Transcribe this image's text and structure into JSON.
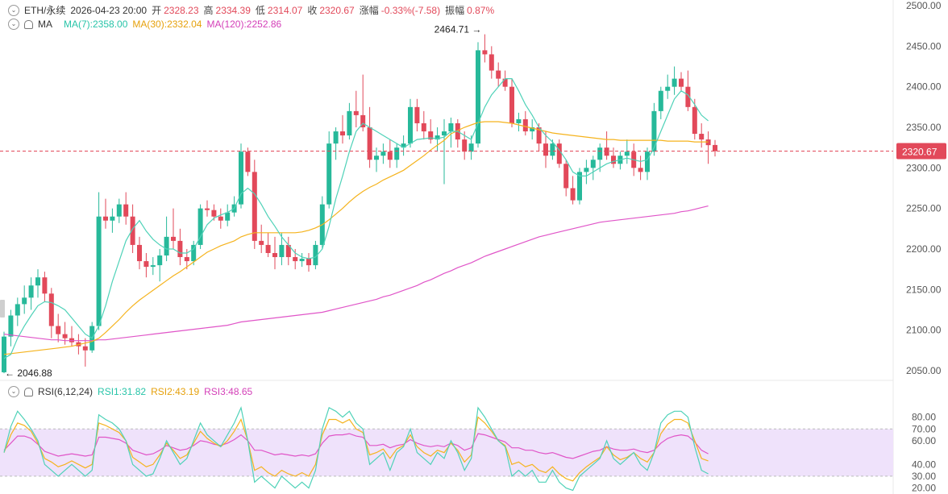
{
  "header": {
    "symbol": "ETH/永续",
    "datetime": "2026-04-23 20:00",
    "open_label": "开",
    "open_value": "2328.23",
    "high_label": "高",
    "high_value": "2334.39",
    "low_label": "低",
    "low_value": "2314.07",
    "close_label": "收",
    "close_value": "2320.67",
    "change_label": "涨幅",
    "change_value": "-0.33%(-7.58)",
    "amplitude_label": "振幅",
    "amplitude_value": "0.87%"
  },
  "ma_legend": {
    "label": "MA",
    "ma7": "MA(7):2358.00",
    "ma30": "MA(30):2332.04",
    "ma120": "MA(120):2252.86"
  },
  "rsi_legend": {
    "label": "RSI(6,12,24)",
    "rsi1": "RSI1:31.82",
    "rsi2": "RSI2:43.19",
    "rsi3": "RSI3:48.65"
  },
  "colors": {
    "up": "#27b99a",
    "down": "#e2495a",
    "ma7": "#4fd2b8",
    "ma30": "#f5b31d",
    "ma120": "#e055c8",
    "rsi1": "#4fd2b8",
    "rsi2": "#f5b31d",
    "rsi3": "#e055c8",
    "rsi_band": "#efe2fb"
  },
  "chart_data": [
    {
      "type": "candlestick",
      "symbol": "ETH/永续",
      "y_ticks": [
        "2500.00",
        "2450.00",
        "2400.00",
        "2350.00",
        "2300.00",
        "2250.00",
        "2200.00",
        "2150.00",
        "2100.00",
        "2050.00"
      ],
      "ylim": [
        2040,
        2505
      ],
      "last_price": "2320.67",
      "high_marker": "2464.71",
      "low_marker": "2046.88",
      "candles": [
        [
          2048,
          2098,
          2046.88,
          2092
        ],
        [
          2092,
          2125,
          2080,
          2118
        ],
        [
          2118,
          2140,
          2105,
          2132
        ],
        [
          2132,
          2155,
          2120,
          2140
        ],
        [
          2140,
          2165,
          2125,
          2155
        ],
        [
          2155,
          2175,
          2140,
          2165
        ],
        [
          2165,
          2172,
          2135,
          2145
        ],
        [
          2145,
          2152,
          2090,
          2105
        ],
        [
          2105,
          2120,
          2085,
          2095
        ],
        [
          2095,
          2110,
          2082,
          2090
        ],
        [
          2090,
          2105,
          2080,
          2085
        ],
        [
          2085,
          2095,
          2070,
          2080
        ],
        [
          2080,
          2090,
          2055,
          2075
        ],
        [
          2075,
          2110,
          2072,
          2105
        ],
        [
          2105,
          2270,
          2100,
          2240
        ],
        [
          2240,
          2262,
          2225,
          2235
        ],
        [
          2235,
          2250,
          2220,
          2240
        ],
        [
          2240,
          2262,
          2232,
          2255
        ],
        [
          2255,
          2270,
          2230,
          2240
        ],
        [
          2240,
          2255,
          2195,
          2205
        ],
        [
          2205,
          2215,
          2175,
          2185
        ],
        [
          2185,
          2195,
          2165,
          2178
        ],
        [
          2178,
          2190,
          2168,
          2180
        ],
        [
          2180,
          2200,
          2160,
          2192
        ],
        [
          2192,
          2240,
          2185,
          2215
        ],
        [
          2215,
          2250,
          2200,
          2210
        ],
        [
          2210,
          2225,
          2180,
          2190
        ],
        [
          2190,
          2200,
          2175,
          2185
        ],
        [
          2185,
          2210,
          2180,
          2205
        ],
        [
          2205,
          2255,
          2200,
          2250
        ],
        [
          2250,
          2260,
          2240,
          2248
        ],
        [
          2248,
          2255,
          2235,
          2240
        ],
        [
          2240,
          2250,
          2225,
          2235
        ],
        [
          2235,
          2255,
          2228,
          2245
        ],
        [
          2245,
          2265,
          2240,
          2255
        ],
        [
          2255,
          2330,
          2250,
          2320
        ],
        [
          2320,
          2325,
          2290,
          2295
        ],
        [
          2295,
          2310,
          2200,
          2210
        ],
        [
          2210,
          2230,
          2195,
          2205
        ],
        [
          2205,
          2220,
          2190,
          2195
        ],
        [
          2195,
          2215,
          2175,
          2190
        ],
        [
          2190,
          2220,
          2180,
          2205
        ],
        [
          2205,
          2215,
          2180,
          2190
        ],
        [
          2190,
          2200,
          2175,
          2185
        ],
        [
          2185,
          2195,
          2178,
          2188
        ],
        [
          2188,
          2195,
          2172,
          2180
        ],
        [
          2180,
          2210,
          2175,
          2205
        ],
        [
          2205,
          2265,
          2200,
          2255
        ],
        [
          2255,
          2345,
          2250,
          2330
        ],
        [
          2330,
          2350,
          2310,
          2345
        ],
        [
          2345,
          2365,
          2330,
          2340
        ],
        [
          2340,
          2380,
          2335,
          2370
        ],
        [
          2370,
          2395,
          2350,
          2365
        ],
        [
          2365,
          2415,
          2345,
          2350
        ],
        [
          2350,
          2375,
          2300,
          2310
        ],
        [
          2310,
          2325,
          2295,
          2315
        ],
        [
          2315,
          2330,
          2305,
          2320
        ],
        [
          2320,
          2335,
          2300,
          2310
        ],
        [
          2310,
          2330,
          2300,
          2325
        ],
        [
          2325,
          2340,
          2315,
          2330
        ],
        [
          2330,
          2385,
          2325,
          2375
        ],
        [
          2375,
          2385,
          2345,
          2355
        ],
        [
          2355,
          2370,
          2335,
          2345
        ],
        [
          2345,
          2360,
          2330,
          2335
        ],
        [
          2335,
          2350,
          2320,
          2340
        ],
        [
          2340,
          2360,
          2280,
          2345
        ],
        [
          2345,
          2362,
          2325,
          2355
        ],
        [
          2355,
          2360,
          2325,
          2335
        ],
        [
          2335,
          2345,
          2310,
          2320
        ],
        [
          2320,
          2340,
          2310,
          2330
        ],
        [
          2330,
          2455,
          2325,
          2445
        ],
        [
          2445,
          2464.71,
          2430,
          2440
        ],
        [
          2440,
          2450,
          2410,
          2420
        ],
        [
          2420,
          2430,
          2400,
          2410
        ],
        [
          2410,
          2420,
          2395,
          2400
        ],
        [
          2400,
          2410,
          2350,
          2355
        ],
        [
          2355,
          2368,
          2345,
          2360
        ],
        [
          2360,
          2370,
          2340,
          2345
        ],
        [
          2345,
          2360,
          2335,
          2350
        ],
        [
          2350,
          2355,
          2320,
          2330
        ],
        [
          2330,
          2345,
          2300,
          2315
        ],
        [
          2315,
          2335,
          2310,
          2330
        ],
        [
          2330,
          2335,
          2300,
          2305
        ],
        [
          2305,
          2310,
          2265,
          2275
        ],
        [
          2275,
          2290,
          2255,
          2260
        ],
        [
          2260,
          2300,
          2255,
          2295
        ],
        [
          2295,
          2310,
          2280,
          2300
        ],
        [
          2300,
          2315,
          2285,
          2310
        ],
        [
          2310,
          2330,
          2295,
          2325
        ],
        [
          2325,
          2345,
          2310,
          2315
        ],
        [
          2315,
          2325,
          2300,
          2305
        ],
        [
          2305,
          2320,
          2298,
          2315
        ],
        [
          2315,
          2335,
          2305,
          2320
        ],
        [
          2320,
          2330,
          2290,
          2300
        ],
        [
          2300,
          2315,
          2285,
          2295
        ],
        [
          2295,
          2325,
          2285,
          2320
        ],
        [
          2320,
          2380,
          2315,
          2370
        ],
        [
          2370,
          2400,
          2360,
          2395
        ],
        [
          2395,
          2415,
          2385,
          2400
        ],
        [
          2400,
          2425,
          2390,
          2410
        ],
        [
          2410,
          2418,
          2395,
          2400
        ],
        [
          2400,
          2420,
          2370,
          2375
        ],
        [
          2375,
          2385,
          2335,
          2342
        ],
        [
          2342,
          2355,
          2325,
          2335
        ],
        [
          2335,
          2345,
          2305,
          2328
        ],
        [
          2328.23,
          2334.39,
          2314.07,
          2320.67
        ]
      ],
      "ma7": [
        2065,
        2070,
        2090,
        2105,
        2118,
        2130,
        2135,
        2134,
        2130,
        2125,
        2115,
        2105,
        2095,
        2090,
        2105,
        2130,
        2160,
        2185,
        2210,
        2225,
        2235,
        2222,
        2212,
        2205,
        2200,
        2200,
        2195,
        2195,
        2200,
        2215,
        2230,
        2238,
        2242,
        2245,
        2250,
        2268,
        2275,
        2268,
        2255,
        2240,
        2228,
        2215,
        2205,
        2195,
        2190,
        2188,
        2190,
        2200,
        2228,
        2262,
        2290,
        2320,
        2345,
        2355,
        2350,
        2345,
        2340,
        2335,
        2330,
        2325,
        2330,
        2335,
        2336,
        2337,
        2336,
        2338,
        2345,
        2345,
        2340,
        2335,
        2355,
        2375,
        2390,
        2400,
        2410,
        2410,
        2395,
        2378,
        2365,
        2350,
        2340,
        2332,
        2322,
        2310,
        2295,
        2290,
        2290,
        2295,
        2300,
        2305,
        2308,
        2310,
        2312,
        2310,
        2308,
        2310,
        2325,
        2345,
        2365,
        2385,
        2395,
        2390,
        2378,
        2365,
        2358
      ],
      "ma30": [
        2070,
        2071,
        2072,
        2073,
        2074,
        2075,
        2076,
        2077,
        2078,
        2079,
        2080,
        2082,
        2084,
        2086,
        2090,
        2097,
        2105,
        2113,
        2122,
        2130,
        2137,
        2143,
        2149,
        2155,
        2161,
        2167,
        2172,
        2178,
        2184,
        2190,
        2196,
        2200,
        2204,
        2207,
        2210,
        2215,
        2218,
        2220,
        2220,
        2220,
        2220,
        2220,
        2220,
        2220,
        2221,
        2223,
        2226,
        2230,
        2236,
        2243,
        2250,
        2258,
        2265,
        2271,
        2276,
        2280,
        2285,
        2289,
        2293,
        2297,
        2303,
        2309,
        2315,
        2322,
        2328,
        2334,
        2342,
        2346,
        2350,
        2353,
        2356,
        2357,
        2357,
        2357,
        2356,
        2355,
        2353,
        2351,
        2349,
        2347,
        2345,
        2343,
        2342,
        2341,
        2340,
        2339,
        2338,
        2337,
        2336,
        2335,
        2335,
        2334,
        2334,
        2334,
        2334,
        2334,
        2334,
        2334,
        2333,
        2333,
        2333,
        2333,
        2332,
        2332,
        2332
      ],
      "ma120": [
        2095,
        2094,
        2093,
        2092,
        2091,
        2090,
        2089,
        2088,
        2088,
        2087,
        2087,
        2087,
        2087,
        2087,
        2088,
        2088,
        2089,
        2090,
        2091,
        2092,
        2093,
        2094,
        2095,
        2096,
        2097,
        2098,
        2099,
        2100,
        2101,
        2102,
        2103,
        2104,
        2105,
        2106,
        2108,
        2110,
        2111,
        2112,
        2113,
        2114,
        2115,
        2116,
        2117,
        2118,
        2119,
        2120,
        2121,
        2122,
        2124,
        2126,
        2128,
        2130,
        2132,
        2134,
        2136,
        2138,
        2141,
        2143,
        2146,
        2149,
        2152,
        2155,
        2159,
        2162,
        2166,
        2170,
        2173,
        2177,
        2180,
        2183,
        2187,
        2191,
        2194,
        2197,
        2200,
        2203,
        2206,
        2209,
        2212,
        2215,
        2217,
        2219,
        2221,
        2223,
        2225,
        2227,
        2229,
        2231,
        2233,
        2234,
        2235,
        2236,
        2237,
        2238,
        2239,
        2240,
        2241,
        2242,
        2243,
        2244,
        2246,
        2247,
        2249,
        2251,
        2253
      ]
    },
    {
      "type": "line",
      "name": "RSI(6,12,24)",
      "y_ticks": [
        "80.00",
        "70.00",
        "60.00",
        "40.00",
        "30.00",
        "20.00"
      ],
      "ylim": [
        17,
        92
      ],
      "band": [
        30,
        70
      ],
      "rsi1": [
        50,
        72,
        85,
        78,
        70,
        60,
        40,
        35,
        30,
        35,
        40,
        35,
        30,
        35,
        82,
        78,
        75,
        70,
        60,
        40,
        35,
        30,
        32,
        45,
        60,
        50,
        40,
        45,
        60,
        75,
        65,
        60,
        55,
        65,
        75,
        88,
        60,
        25,
        30,
        25,
        20,
        30,
        25,
        20,
        25,
        20,
        35,
        70,
        88,
        85,
        80,
        85,
        75,
        70,
        40,
        45,
        50,
        35,
        50,
        55,
        70,
        50,
        45,
        40,
        50,
        45,
        60,
        50,
        35,
        45,
        88,
        80,
        70,
        60,
        55,
        30,
        35,
        30,
        35,
        25,
        25,
        35,
        25,
        20,
        18,
        30,
        35,
        40,
        45,
        60,
        45,
        40,
        45,
        50,
        40,
        35,
        50,
        75,
        82,
        85,
        85,
        80,
        55,
        35,
        32
      ],
      "rsi2": [
        50,
        65,
        75,
        73,
        68,
        58,
        45,
        42,
        38,
        40,
        43,
        40,
        37,
        40,
        75,
        73,
        70,
        67,
        60,
        46,
        42,
        38,
        40,
        48,
        58,
        52,
        45,
        48,
        58,
        68,
        62,
        58,
        55,
        60,
        68,
        78,
        60,
        35,
        38,
        33,
        30,
        35,
        32,
        30,
        33,
        30,
        40,
        65,
        78,
        78,
        75,
        78,
        70,
        67,
        48,
        50,
        53,
        45,
        53,
        56,
        65,
        55,
        50,
        47,
        52,
        50,
        58,
        52,
        42,
        48,
        80,
        75,
        68,
        60,
        56,
        40,
        42,
        38,
        40,
        35,
        33,
        38,
        32,
        28,
        26,
        33,
        38,
        42,
        46,
        55,
        48,
        44,
        46,
        50,
        45,
        42,
        50,
        66,
        74,
        78,
        78,
        75,
        60,
        45,
        43
      ],
      "rsi3": [
        52,
        58,
        64,
        64,
        62,
        57,
        51,
        49,
        47,
        48,
        49,
        48,
        47,
        48,
        63,
        63,
        62,
        61,
        58,
        52,
        50,
        48,
        49,
        52,
        56,
        54,
        52,
        53,
        56,
        60,
        59,
        57,
        56,
        58,
        61,
        65,
        60,
        52,
        52,
        50,
        48,
        49,
        48,
        47,
        48,
        47,
        49,
        58,
        64,
        65,
        65,
        66,
        64,
        63,
        56,
        56,
        57,
        54,
        56,
        57,
        61,
        58,
        56,
        55,
        56,
        55,
        58,
        56,
        52,
        54,
        66,
        65,
        63,
        61,
        59,
        54,
        54,
        52,
        52,
        50,
        49,
        50,
        48,
        46,
        45,
        47,
        49,
        51,
        52,
        55,
        53,
        52,
        52,
        53,
        51,
        50,
        52,
        58,
        62,
        64,
        65,
        64,
        59,
        52,
        49
      ]
    }
  ]
}
